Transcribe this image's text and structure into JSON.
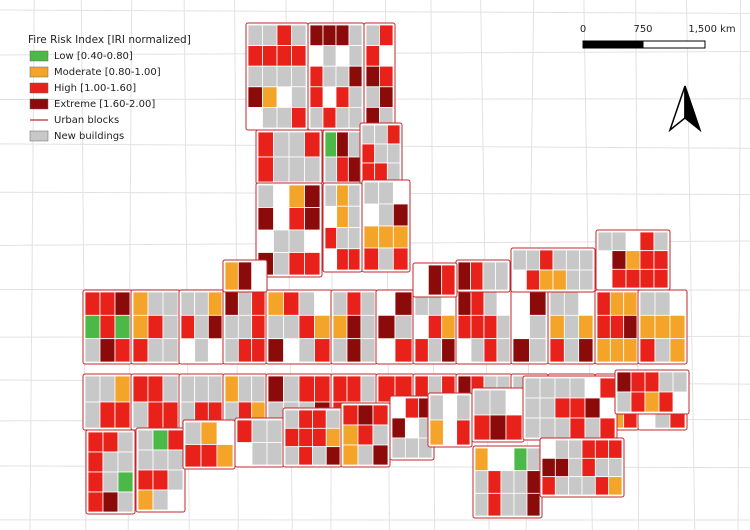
{
  "legend": {
    "title": "Fire Risk Index [IRI normalized]",
    "items": [
      {
        "label": "Low [0.40-0.80]",
        "color": "#4cb848"
      },
      {
        "label": "Moderate [0.80-1.00]",
        "color": "#f5a42a"
      },
      {
        "label": "High [1.00-1.60]",
        "color": "#e8221b"
      },
      {
        "label": "Extreme [1.60-2.00]",
        "color": "#8b0a0a"
      },
      {
        "label": "Urban blocks",
        "color": "#c0282d"
      },
      {
        "label": "New buildings",
        "color": "#c8c8c8"
      }
    ]
  },
  "scale_bar": {
    "labels": [
      "0",
      "750",
      "1,500 km"
    ]
  }
}
